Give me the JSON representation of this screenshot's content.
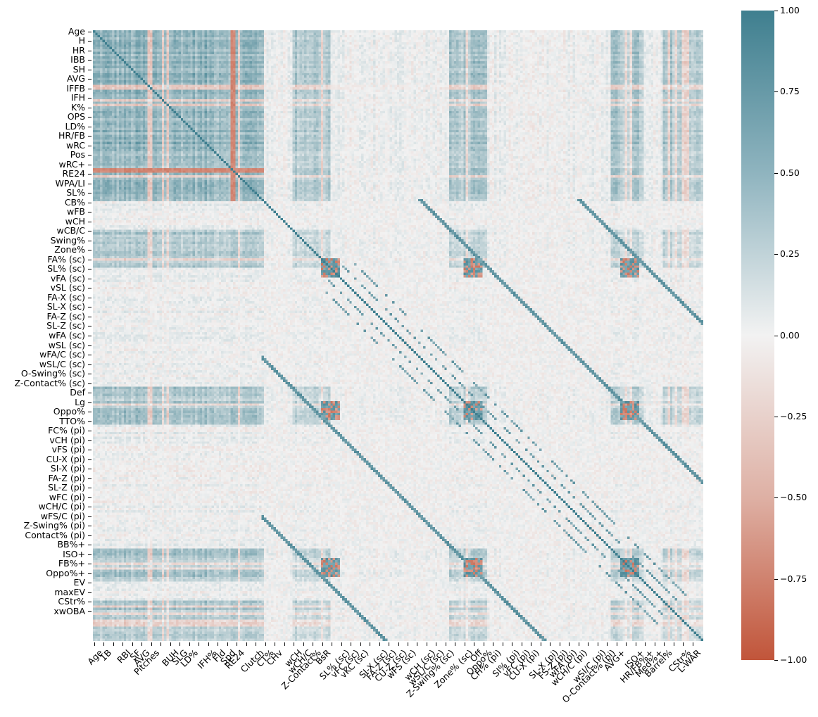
{
  "chart_data": {
    "type": "heatmap",
    "title": "",
    "xlabel": "",
    "ylabel": "",
    "n_variables": 257,
    "value_range": [
      -1.0,
      1.0
    ],
    "colormap": {
      "min_color": "#c1553a",
      "mid_color": "#f2f2f2",
      "max_color": "#3f7f8f",
      "type": "diverging"
    },
    "diagonal_value": 1.0,
    "y_tick_labels": [
      "Age",
      "H",
      "HR",
      "IBB",
      "SH",
      "AVG",
      "IFFB",
      "IFH",
      "K%",
      "OPS",
      "LD%",
      "HR/FB",
      "wRC",
      "Pos",
      "wRC+",
      "RE24",
      "WPA/LI",
      "SL%",
      "CB%",
      "wFB",
      "wCH",
      "wCB/C",
      "Swing%",
      "Zone%",
      "FA% (sc)",
      "SL% (sc)",
      "vFA (sc)",
      "vSL (sc)",
      "FA-X (sc)",
      "SL-X (sc)",
      "FA-Z (sc)",
      "SL-Z (sc)",
      "wFA (sc)",
      "wSL (sc)",
      "wFA/C (sc)",
      "wSL/C (sc)",
      "O-Swing% (sc)",
      "Z-Contact% (sc)",
      "Def",
      "Lg",
      "Oppo%",
      "TTO%",
      "FC% (pi)",
      "vCH (pi)",
      "vFS (pi)",
      "CU-X (pi)",
      "SI-X (pi)",
      "FA-Z (pi)",
      "SL-Z (pi)",
      "wFC (pi)",
      "wCH/C (pi)",
      "wFS/C (pi)",
      "Z-Swing% (pi)",
      "Contact% (pi)",
      "BB%+",
      "ISO+",
      "FB%+",
      "Oppo%+",
      "EV",
      "maxEV",
      "CStr%",
      "xwOBA"
    ],
    "x_tick_labels": [
      "Age",
      "1B",
      "RBI",
      "SF",
      "AVG",
      "Pitches",
      "BUH",
      "SLG",
      "LD%",
      "IFH%",
      "Fld",
      "Spd",
      "RE24",
      "Clutch",
      "CT%",
      "CHv",
      "wCH",
      "wCH/C",
      "Z-Contact%",
      "BsR",
      "SL% (sc)",
      "vFC (sc)",
      "vKC (sc)",
      "SI-X (sc)",
      "FA-Z (sc)",
      "CU-Z (sc)",
      "wFS (sc)",
      "wCH (sc)",
      "wSL/C (sc)",
      "Z-Swing% (sc)",
      "Zone% (sc)",
      "Off",
      "Oppo%",
      "CH% (pi)",
      "SI% (pi)",
      "vFC (pi)",
      "CU-X (pi)",
      "SL-X (pi)",
      "FS-Z (pi)",
      "wFA (pi)",
      "wCH/C (pi)",
      "wSI/C (pi)",
      "O-Contact% (pi)",
      "AVG+",
      "ISO+",
      "HR/FB%+",
      "Med%+",
      "Barrel%",
      "CStr%",
      "L-WAR"
    ],
    "colorbar": {
      "ticks": [
        1.0,
        0.75,
        0.5,
        0.25,
        0.0,
        -0.25,
        -0.5,
        -0.75,
        -1.0
      ],
      "tick_labels": [
        "1.00",
        "0.75",
        "0.50",
        "0.25",
        "0.00",
        "−0.25",
        "−0.50",
        "−0.75",
        "−1.00"
      ]
    },
    "notes": "Correlation matrix of ~257 baseball statistics; strong positive blocks among counting/batting stats (top-left), diagonal of 1.0, repeated off-diagonal bands linking sc/pi pitch-value variants, and negative stripes (e.g. RE24-related row)."
  }
}
